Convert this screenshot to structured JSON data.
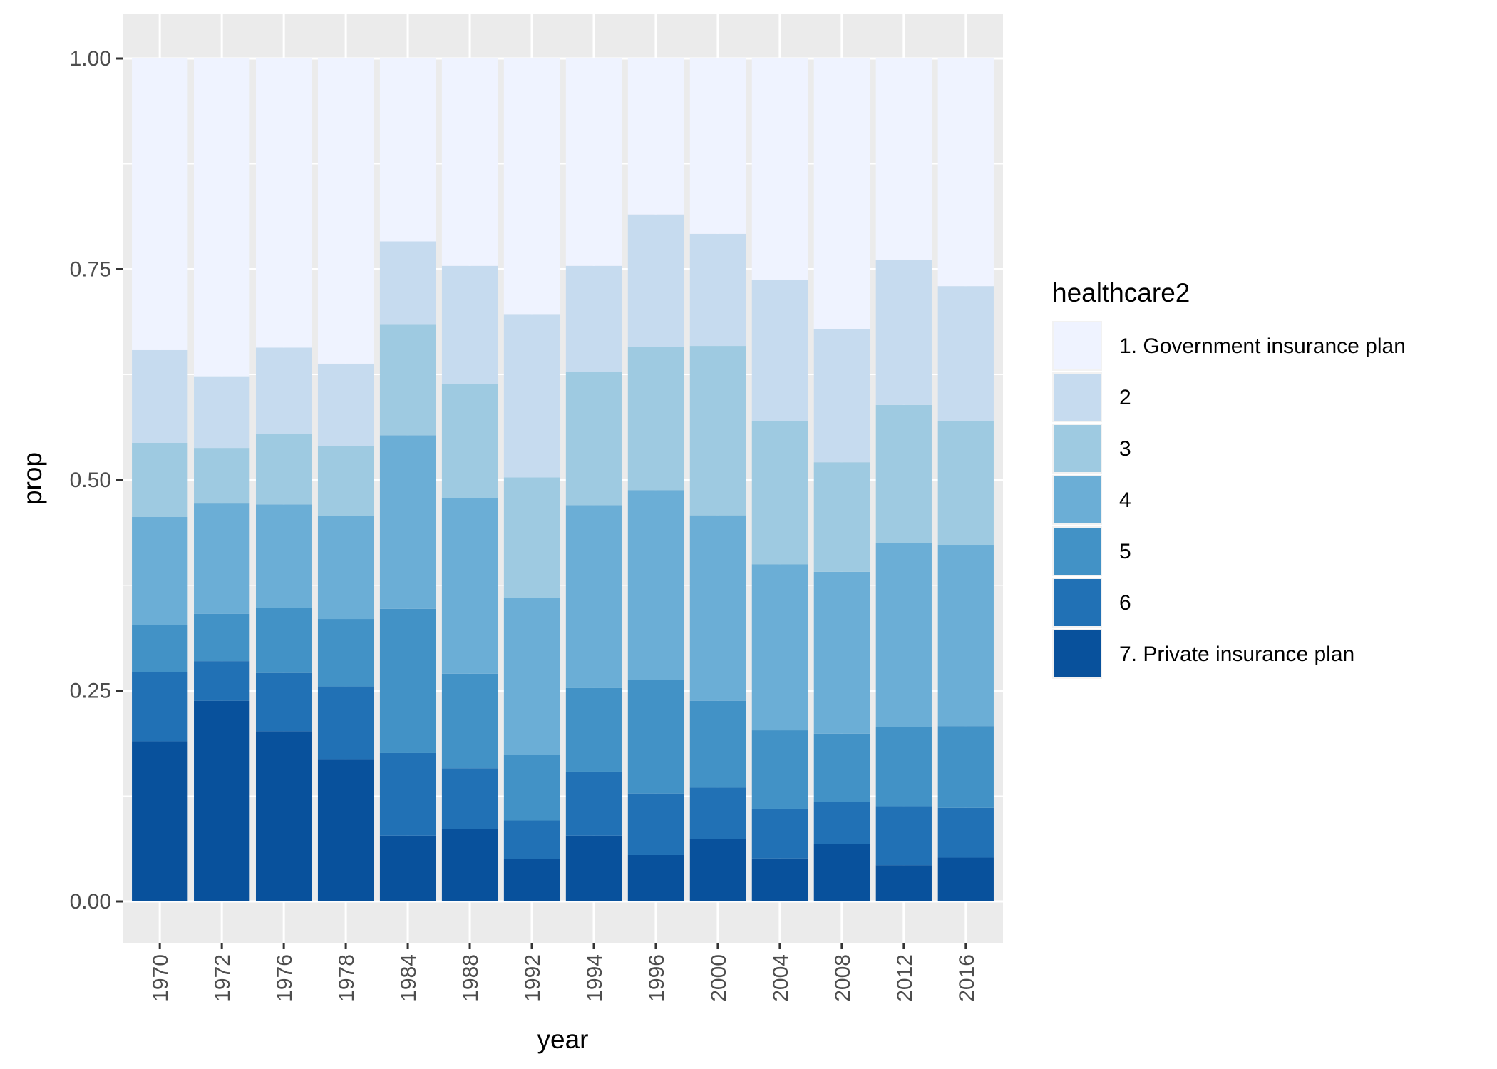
{
  "chart_data": {
    "type": "bar",
    "stacked": true,
    "title": "",
    "xlabel": "year",
    "ylabel": "prop",
    "ylim": [
      0,
      1
    ],
    "y_ticks": [
      "0.00",
      "0.25",
      "0.50",
      "0.75",
      "1.00"
    ],
    "grid": true,
    "legend_position": "right",
    "legend_title": "healthcare2",
    "categories": [
      "1970",
      "1972",
      "1976",
      "1978",
      "1984",
      "1988",
      "1992",
      "1994",
      "1996",
      "2000",
      "2004",
      "2008",
      "2012",
      "2016"
    ],
    "series": [
      {
        "name": "7. Private insurance plan",
        "color": "#08519c",
        "values": [
          0.19,
          0.238,
          0.202,
          0.168,
          0.078,
          0.086,
          0.05,
          0.078,
          0.055,
          0.074,
          0.051,
          0.068,
          0.043,
          0.052
        ]
      },
      {
        "name": "6",
        "color": "#2171b5",
        "values": [
          0.082,
          0.047,
          0.069,
          0.087,
          0.098,
          0.072,
          0.046,
          0.076,
          0.073,
          0.061,
          0.059,
          0.05,
          0.07,
          0.059
        ]
      },
      {
        "name": "5",
        "color": "#4292c6",
        "values": [
          0.056,
          0.056,
          0.077,
          0.08,
          0.171,
          0.112,
          0.078,
          0.099,
          0.135,
          0.103,
          0.093,
          0.081,
          0.094,
          0.097
        ]
      },
      {
        "name": "4",
        "color": "#6baed6",
        "values": [
          0.128,
          0.131,
          0.123,
          0.122,
          0.206,
          0.208,
          0.186,
          0.217,
          0.225,
          0.22,
          0.197,
          0.192,
          0.218,
          0.215
        ]
      },
      {
        "name": "3",
        "color": "#9ecae1",
        "values": [
          0.088,
          0.066,
          0.084,
          0.083,
          0.131,
          0.136,
          0.143,
          0.158,
          0.17,
          0.201,
          0.17,
          0.13,
          0.164,
          0.147
        ]
      },
      {
        "name": "2",
        "color": "#c6dbef",
        "values": [
          0.11,
          0.085,
          0.102,
          0.098,
          0.099,
          0.14,
          0.193,
          0.126,
          0.157,
          0.133,
          0.167,
          0.158,
          0.172,
          0.16
        ]
      },
      {
        "name": "1. Government insurance plan",
        "color": "#eff3ff",
        "values": [
          0.346,
          0.377,
          0.343,
          0.362,
          0.217,
          0.246,
          0.304,
          0.246,
          0.185,
          0.208,
          0.263,
          0.321,
          0.239,
          0.27
        ]
      }
    ],
    "legend_order": [
      "1. Government insurance plan",
      "2",
      "3",
      "4",
      "5",
      "6",
      "7. Private insurance plan"
    ]
  }
}
